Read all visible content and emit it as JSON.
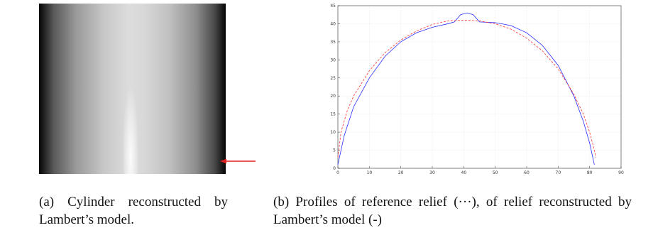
{
  "figures": [
    {
      "caption": "(a) Cylinder reconstructed by Lambert’s model."
    },
    {
      "caption": "(b) Profiles of reference relief (···), of relief reconstructed by Lambert’s model (-)"
    }
  ],
  "chart_data": {
    "type": "line",
    "xlim": [
      0,
      90
    ],
    "xticks": [
      0,
      10,
      20,
      30,
      40,
      50,
      60,
      70,
      80,
      90
    ],
    "ylim": [
      0,
      45
    ],
    "yticks": [
      0,
      5,
      10,
      15,
      20,
      25,
      30,
      35,
      40,
      45
    ],
    "grid": true,
    "series": [
      {
        "color": "#2b2bff",
        "dash": false,
        "x": [
          0,
          2,
          5,
          10,
          15,
          20,
          25,
          30,
          35,
          37,
          39,
          41,
          43,
          45,
          50,
          55,
          60,
          65,
          70,
          75,
          78,
          80,
          81,
          81.5
        ],
        "values": [
          1,
          9,
          17,
          25,
          31,
          35,
          37.5,
          39,
          40,
          40.5,
          42.5,
          43,
          42.5,
          40.5,
          40.3,
          39.5,
          37.5,
          34,
          28.5,
          20,
          13,
          7,
          3,
          1
        ]
      },
      {
        "color": "#ff3030",
        "dash": true,
        "x": [
          0,
          1,
          3,
          5,
          10,
          15,
          20,
          25,
          30,
          35,
          40,
          45,
          50,
          55,
          60,
          65,
          70,
          75,
          78,
          80,
          81.5,
          82
        ],
        "values": [
          3,
          10,
          16,
          20,
          27,
          32,
          35.5,
          38,
          39.8,
          40.8,
          41,
          40.8,
          40,
          38.5,
          36,
          32.5,
          27.5,
          20.5,
          15,
          10,
          5,
          3
        ]
      }
    ]
  }
}
